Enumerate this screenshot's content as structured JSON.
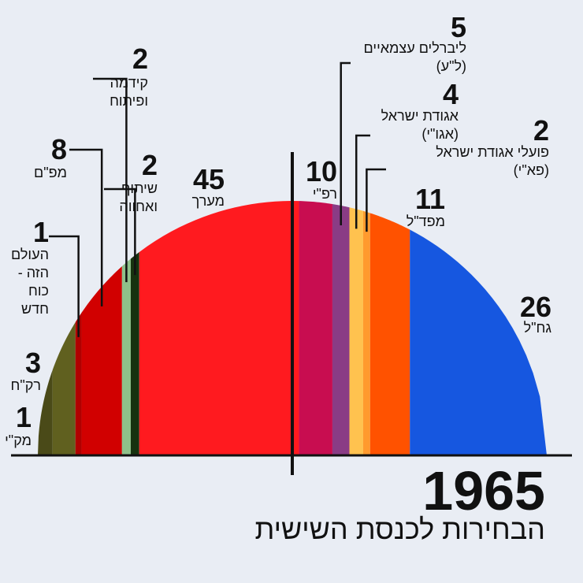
{
  "title": "1965",
  "subtitle": "הבחירות לכנסת השישית",
  "chart_data": {
    "type": "parliament",
    "series": [
      {
        "name": "מק\"י",
        "color": "#4a4a18",
        "values": [
          1
        ]
      },
      {
        "name": "רק\"ח",
        "color": "#60601f",
        "values": [
          3
        ]
      },
      {
        "name": "העולם הזה - כוח חדש",
        "color": "#b00000",
        "values": [
          1
        ]
      },
      {
        "name": "מפ\"ם",
        "color": "#d10000",
        "values": [
          8
        ]
      },
      {
        "name": "קידמה ופיתוח",
        "color": "#8fc08a",
        "values": [
          2
        ]
      },
      {
        "name": "שיתוף ואחווה",
        "color": "#16320f",
        "values": [
          2
        ]
      },
      {
        "name": "מערך",
        "color": "#ff1a1f",
        "values": [
          45
        ]
      },
      {
        "name": "רפ\"י",
        "color": "#c80d50",
        "values": [
          10
        ]
      },
      {
        "name": "ליברלים עצמאיים (ל\"ע)",
        "color": "#8a3c85",
        "values": [
          5
        ]
      },
      {
        "name": "אגודת ישראל (אגו\"י)",
        "color": "#ffc24f",
        "values": [
          4
        ]
      },
      {
        "name": "פועלי אגודת ישראל (פא\"י)",
        "color": "#ff9a2e",
        "values": [
          2
        ]
      },
      {
        "name": "מפד\"ל",
        "color": "#ff5200",
        "values": [
          11
        ]
      },
      {
        "name": "גח\"ל",
        "color": "#1657e0",
        "values": [
          26
        ]
      }
    ]
  }
}
